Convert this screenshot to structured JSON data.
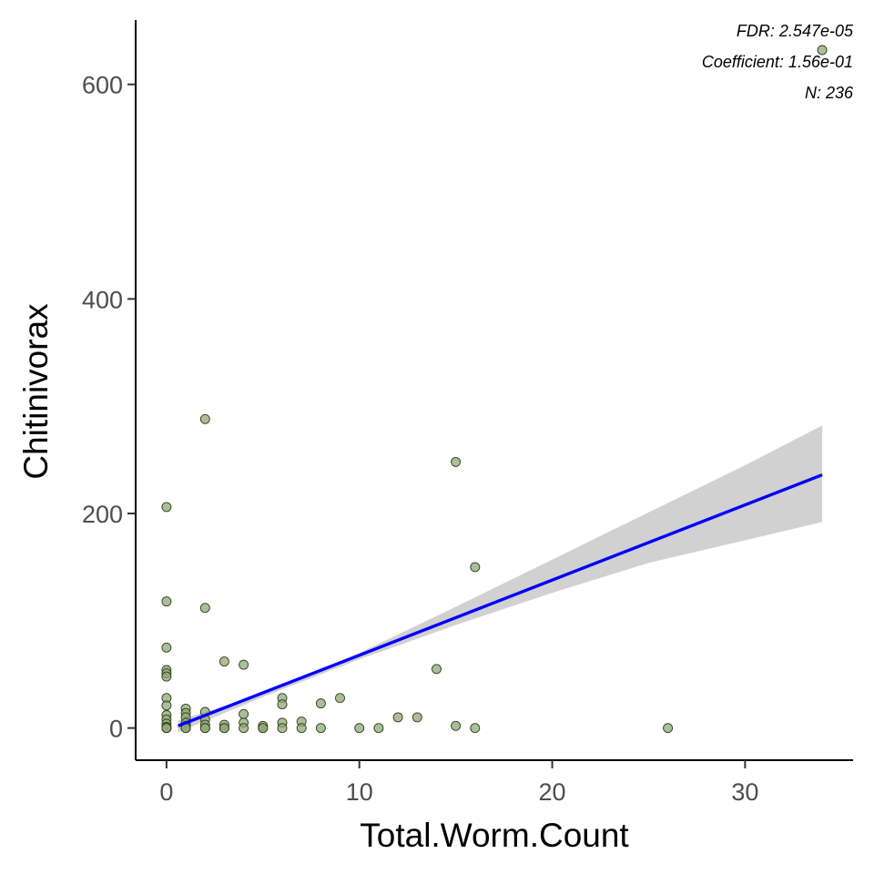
{
  "chart_data": {
    "type": "scatter",
    "xlabel": "Total.Worm.Count",
    "ylabel": "Chitinivorax",
    "xlim": [
      -1.6,
      35.6
    ],
    "ylim": [
      -30,
      660
    ],
    "x_ticks": [
      0,
      10,
      20,
      30
    ],
    "y_ticks": [
      0,
      200,
      400,
      600
    ],
    "grid": false,
    "annotations": [
      "FDR: 2.547e-05",
      "Coefficient: 1.56e-01",
      "N: 236"
    ],
    "colors": {
      "points_fill": "#8fa876",
      "points_stroke": "#2e3d1e",
      "fit_line": "#0000ff",
      "ci_band": "#bebebe"
    },
    "points": [
      {
        "x": 0,
        "y": 206
      },
      {
        "x": 0,
        "y": 118
      },
      {
        "x": 0,
        "y": 75
      },
      {
        "x": 0,
        "y": 54
      },
      {
        "x": 0,
        "y": 51
      },
      {
        "x": 0,
        "y": 48
      },
      {
        "x": 0,
        "y": 28
      },
      {
        "x": 0,
        "y": 21
      },
      {
        "x": 0,
        "y": 12
      },
      {
        "x": 0,
        "y": 8
      },
      {
        "x": 0,
        "y": 4
      },
      {
        "x": 0,
        "y": 1
      },
      {
        "x": 0,
        "y": 0
      },
      {
        "x": 0,
        "y": 0
      },
      {
        "x": 0,
        "y": 0
      },
      {
        "x": 1,
        "y": 18
      },
      {
        "x": 1,
        "y": 14
      },
      {
        "x": 1,
        "y": 10
      },
      {
        "x": 1,
        "y": 5
      },
      {
        "x": 1,
        "y": 2
      },
      {
        "x": 1,
        "y": 0
      },
      {
        "x": 1,
        "y": 0
      },
      {
        "x": 2,
        "y": 288
      },
      {
        "x": 2,
        "y": 112
      },
      {
        "x": 2,
        "y": 15
      },
      {
        "x": 2,
        "y": 8
      },
      {
        "x": 2,
        "y": 3
      },
      {
        "x": 2,
        "y": 0
      },
      {
        "x": 2,
        "y": 0
      },
      {
        "x": 3,
        "y": 62
      },
      {
        "x": 3,
        "y": 3
      },
      {
        "x": 3,
        "y": 0
      },
      {
        "x": 3,
        "y": 0
      },
      {
        "x": 4,
        "y": 59
      },
      {
        "x": 4,
        "y": 13
      },
      {
        "x": 4,
        "y": 5
      },
      {
        "x": 4,
        "y": 0
      },
      {
        "x": 5,
        "y": 2
      },
      {
        "x": 5,
        "y": 0
      },
      {
        "x": 5,
        "y": 0
      },
      {
        "x": 6,
        "y": 28
      },
      {
        "x": 6,
        "y": 22
      },
      {
        "x": 6,
        "y": 5
      },
      {
        "x": 6,
        "y": 0
      },
      {
        "x": 7,
        "y": 6
      },
      {
        "x": 7,
        "y": 0
      },
      {
        "x": 8,
        "y": 23
      },
      {
        "x": 8,
        "y": 0
      },
      {
        "x": 9,
        "y": 28
      },
      {
        "x": 10,
        "y": 0
      },
      {
        "x": 11,
        "y": 0
      },
      {
        "x": 12,
        "y": 10
      },
      {
        "x": 13,
        "y": 10
      },
      {
        "x": 14,
        "y": 55
      },
      {
        "x": 15,
        "y": 248
      },
      {
        "x": 15,
        "y": 2
      },
      {
        "x": 16,
        "y": 150
      },
      {
        "x": 16,
        "y": 0
      },
      {
        "x": 26,
        "y": 0
      },
      {
        "x": 34,
        "y": 632
      }
    ],
    "fit": {
      "type": "linear",
      "line": [
        {
          "x": 0.6,
          "y": 2
        },
        {
          "x": 34,
          "y": 236
        }
      ],
      "ci_upper": [
        {
          "x": 0.6,
          "y": 7
        },
        {
          "x": 5,
          "y": 32
        },
        {
          "x": 10,
          "y": 70
        },
        {
          "x": 15,
          "y": 113
        },
        {
          "x": 20,
          "y": 157
        },
        {
          "x": 25,
          "y": 201
        },
        {
          "x": 30,
          "y": 245
        },
        {
          "x": 34,
          "y": 282
        }
      ],
      "ci_lower": [
        {
          "x": 0.6,
          "y": -4
        },
        {
          "x": 5,
          "y": 29
        },
        {
          "x": 10,
          "y": 64
        },
        {
          "x": 15,
          "y": 96
        },
        {
          "x": 20,
          "y": 126
        },
        {
          "x": 25,
          "y": 154
        },
        {
          "x": 30,
          "y": 175
        },
        {
          "x": 34,
          "y": 192
        }
      ]
    }
  }
}
